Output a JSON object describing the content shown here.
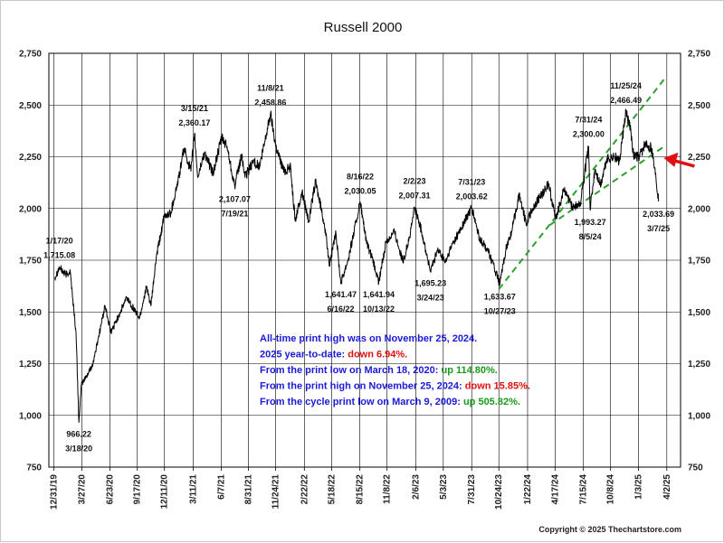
{
  "chart_data": {
    "type": "line",
    "title": "Russell 2000",
    "ylim": [
      750,
      2750
    ],
    "y_ticks": [
      750,
      1000,
      1250,
      1500,
      1750,
      2000,
      2250,
      2500,
      2750
    ],
    "y_tick_labels": [
      "750",
      "1,000",
      "1,250",
      "1,500",
      "1,750",
      "2,000",
      "2,250",
      "2,500",
      "2,750"
    ],
    "x_range": [
      "2019-12-15",
      "2025-05-15"
    ],
    "x_ticks": [
      "2019-12-31",
      "2020-03-27",
      "2020-06-23",
      "2020-09-17",
      "2020-12-11",
      "2021-03-11",
      "2021-06-07",
      "2021-08-31",
      "2021-11-24",
      "2022-02-22",
      "2022-05-18",
      "2022-08-15",
      "2022-11-08",
      "2023-02-06",
      "2023-05-03",
      "2023-07-31",
      "2023-10-24",
      "2024-01-22",
      "2024-04-17",
      "2024-07-15",
      "2024-10-08",
      "2025-01-03",
      "2025-04-02"
    ],
    "x_tick_labels": [
      "12/31/19",
      "3/27/20",
      "6/23/20",
      "9/17/20",
      "12/11/20",
      "3/11/21",
      "6/7/21",
      "8/31/21",
      "11/24/21",
      "2/22/22",
      "5/18/22",
      "8/15/22",
      "11/8/22",
      "2/6/23",
      "5/3/23",
      "7/31/23",
      "10/24/23",
      "1/22/24",
      "4/17/24",
      "7/15/24",
      "10/8/24",
      "1/3/25",
      "4/2/25"
    ],
    "grid": true,
    "series": [
      {
        "color": "#000000",
        "points": [
          [
            "2020-01-02",
            1665
          ],
          [
            "2020-01-17",
            1715.08
          ],
          [
            "2020-02-05",
            1680
          ],
          [
            "2020-02-20",
            1695
          ],
          [
            "2020-02-28",
            1560
          ],
          [
            "2020-03-09",
            1400
          ],
          [
            "2020-03-18",
            966.22
          ],
          [
            "2020-03-26",
            1150
          ],
          [
            "2020-04-15",
            1200
          ],
          [
            "2020-05-01",
            1250
          ],
          [
            "2020-06-08",
            1530
          ],
          [
            "2020-06-26",
            1400
          ],
          [
            "2020-07-20",
            1480
          ],
          [
            "2020-08-15",
            1570
          ],
          [
            "2020-09-24",
            1470
          ],
          [
            "2020-10-15",
            1620
          ],
          [
            "2020-10-30",
            1530
          ],
          [
            "2020-11-15",
            1760
          ],
          [
            "2020-12-10",
            1960
          ],
          [
            "2020-12-31",
            1980
          ],
          [
            "2021-01-25",
            2150
          ],
          [
            "2021-02-10",
            2290
          ],
          [
            "2021-03-04",
            2180
          ],
          [
            "2021-03-15",
            2360.17
          ],
          [
            "2021-03-25",
            2150
          ],
          [
            "2021-04-15",
            2270
          ],
          [
            "2021-05-12",
            2170
          ],
          [
            "2021-06-08",
            2340
          ],
          [
            "2021-06-25",
            2300
          ],
          [
            "2021-07-19",
            2107.07
          ],
          [
            "2021-08-10",
            2260
          ],
          [
            "2021-08-20",
            2150
          ],
          [
            "2021-09-15",
            2230
          ],
          [
            "2021-10-05",
            2200
          ],
          [
            "2021-11-08",
            2458.86
          ],
          [
            "2021-11-25",
            2300
          ],
          [
            "2021-12-20",
            2180
          ],
          [
            "2022-01-10",
            2200
          ],
          [
            "2022-01-24",
            1940
          ],
          [
            "2022-02-15",
            2080
          ],
          [
            "2022-03-08",
            1940
          ],
          [
            "2022-03-29",
            2130
          ],
          [
            "2022-04-25",
            1930
          ],
          [
            "2022-05-12",
            1730
          ],
          [
            "2022-06-01",
            1880
          ],
          [
            "2022-06-16",
            1641.47
          ],
          [
            "2022-07-10",
            1760
          ],
          [
            "2022-08-16",
            2030.05
          ],
          [
            "2022-09-05",
            1830
          ],
          [
            "2022-09-20",
            1770
          ],
          [
            "2022-10-13",
            1641.94
          ],
          [
            "2022-11-05",
            1840
          ],
          [
            "2022-12-01",
            1890
          ],
          [
            "2022-12-28",
            1740
          ],
          [
            "2023-01-20",
            1880
          ],
          [
            "2023-02-02",
            2007.31
          ],
          [
            "2023-02-24",
            1890
          ],
          [
            "2023-03-24",
            1695.23
          ],
          [
            "2023-04-15",
            1800
          ],
          [
            "2023-05-10",
            1740
          ],
          [
            "2023-06-01",
            1830
          ],
          [
            "2023-06-20",
            1880
          ],
          [
            "2023-07-31",
            2003.62
          ],
          [
            "2023-08-25",
            1850
          ],
          [
            "2023-09-20",
            1800
          ],
          [
            "2023-10-27",
            1633.67
          ],
          [
            "2023-11-15",
            1800
          ],
          [
            "2023-12-05",
            1900
          ],
          [
            "2023-12-27",
            2070
          ],
          [
            "2024-01-17",
            1930
          ],
          [
            "2024-02-15",
            2020
          ],
          [
            "2024-03-28",
            2120
          ],
          [
            "2024-04-18",
            1950
          ],
          [
            "2024-05-15",
            2090
          ],
          [
            "2024-06-10",
            2010
          ],
          [
            "2024-07-05",
            2020
          ],
          [
            "2024-07-31",
            2300
          ],
          [
            "2024-08-05",
            1993.27
          ],
          [
            "2024-08-20",
            2190
          ],
          [
            "2024-09-06",
            2110
          ],
          [
            "2024-09-26",
            2240
          ],
          [
            "2024-10-20",
            2250
          ],
          [
            "2024-11-05",
            2230
          ],
          [
            "2024-11-25",
            2466.49
          ],
          [
            "2024-12-10",
            2380
          ],
          [
            "2024-12-19",
            2250
          ],
          [
            "2025-01-06",
            2250
          ],
          [
            "2025-01-24",
            2310
          ],
          [
            "2025-02-14",
            2290
          ],
          [
            "2025-02-27",
            2150
          ],
          [
            "2025-03-07",
            2033.69
          ]
        ]
      }
    ],
    "channel_lines": [
      {
        "color": "#2e9e2e",
        "dashed": true,
        "points": [
          [
            "2023-10-24",
            1610
          ],
          [
            "2025-03-25",
            2625
          ]
        ]
      },
      {
        "color": "#2e9e2e",
        "dashed": true,
        "points": [
          [
            "2024-04-01",
            1920
          ],
          [
            "2025-03-25",
            2300
          ]
        ]
      }
    ],
    "arrow": {
      "color": "#e01010",
      "date": "2025-04-15",
      "value": 2222
    },
    "annotations": [
      {
        "lines": [
          "1/17/20",
          "1,715.08"
        ],
        "date": "2020-01-17",
        "value": 1760,
        "side": "above"
      },
      {
        "lines": [
          "966.22",
          "3/18/20"
        ],
        "date": "2020-03-18",
        "value": 935,
        "side": "below"
      },
      {
        "lines": [
          "3/15/21",
          "2,360.17"
        ],
        "date": "2021-03-15",
        "value": 2400,
        "side": "above"
      },
      {
        "lines": [
          "2,107.07",
          "7/19/21"
        ],
        "date": "2021-07-19",
        "value": 2070,
        "side": "below"
      },
      {
        "lines": [
          "11/8/21",
          "2,458.86"
        ],
        "date": "2021-11-08",
        "value": 2500,
        "side": "above"
      },
      {
        "lines": [
          "1,641.47",
          "6/16/22"
        ],
        "date": "2022-06-16",
        "value": 1610,
        "side": "below"
      },
      {
        "lines": [
          "8/16/22",
          "2,030.05"
        ],
        "date": "2022-08-16",
        "value": 2070,
        "side": "above"
      },
      {
        "lines": [
          "1,641.94",
          "10/13/22"
        ],
        "date": "2022-10-13",
        "value": 1610,
        "side": "below"
      },
      {
        "lines": [
          "2/2/23",
          "2,007.31"
        ],
        "date": "2023-02-02",
        "value": 2050,
        "side": "above"
      },
      {
        "lines": [
          "1,695.23",
          "3/24/23"
        ],
        "date": "2023-03-24",
        "value": 1665,
        "side": "below"
      },
      {
        "lines": [
          "7/31/23",
          "2,003.62"
        ],
        "date": "2023-07-31",
        "value": 2045,
        "side": "above"
      },
      {
        "lines": [
          "1,633.67",
          "10/27/23"
        ],
        "date": "2023-10-27",
        "value": 1600,
        "side": "below"
      },
      {
        "lines": [
          "7/31/24",
          "2,300.00"
        ],
        "date": "2024-07-31",
        "value": 2345,
        "side": "above"
      },
      {
        "lines": [
          "1,993.27",
          "8/5/24"
        ],
        "date": "2024-08-05",
        "value": 1960,
        "side": "below"
      },
      {
        "lines": [
          "11/25/24",
          "2,466.49"
        ],
        "date": "2024-11-25",
        "value": 2510,
        "side": "above"
      },
      {
        "lines": [
          "2,033.69",
          "3/7/25"
        ],
        "date": "2025-03-07",
        "value": 2000,
        "side": "below"
      }
    ],
    "stats": [
      {
        "parts": [
          {
            "text": "All-time print high was on November 25, 2024.",
            "color": "#1a1ad8"
          }
        ]
      },
      {
        "parts": [
          {
            "text": "2025 year-to-date: ",
            "color": "#1a1ad8"
          },
          {
            "text": "down 6.94%.",
            "color": "#e01010"
          }
        ]
      },
      {
        "parts": [
          {
            "text": "From the print low on March 18, 2020:  ",
            "color": "#1a1ad8"
          },
          {
            "text": "up 114.80%.",
            "color": "#1a9a1a"
          }
        ]
      },
      {
        "parts": [
          {
            "text": "From the print high on November 25, 2024:  ",
            "color": "#1a1ad8"
          },
          {
            "text": "down 15.85%.",
            "color": "#e01010"
          }
        ]
      },
      {
        "parts": [
          {
            "text": "From the cycle print low on March 9, 2009:  ",
            "color": "#1a1ad8"
          },
          {
            "text": "up 505.82%.",
            "color": "#1a9a1a"
          }
        ]
      }
    ],
    "copyright": "Copyright © 2025 Thechartstore.com"
  }
}
